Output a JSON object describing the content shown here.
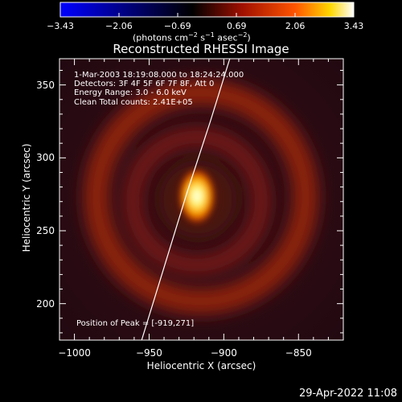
{
  "chart_data": {
    "type": "heatmap",
    "title": "Reconstructed RHESSI Image",
    "xlabel": "Heliocentric X (arcsec)",
    "ylabel": "Heliocentric Y (arcsec)",
    "xlim": [
      -1010,
      -820
    ],
    "ylim": [
      175,
      368
    ],
    "xticks": [
      {
        "value": -1000,
        "label": "−1000"
      },
      {
        "value": -950,
        "label": "−950"
      },
      {
        "value": -900,
        "label": "−900"
      },
      {
        "value": -850,
        "label": "−850"
      }
    ],
    "yticks": [
      {
        "value": 200,
        "label": "200"
      },
      {
        "value": 250,
        "label": "250"
      },
      {
        "value": 300,
        "label": "300"
      },
      {
        "value": 350,
        "label": "350"
      }
    ],
    "colorbar": {
      "range": [
        -3.43,
        3.43
      ],
      "ticks": [
        {
          "value": -3.43,
          "label": "−3.43"
        },
        {
          "value": -2.06,
          "label": "−2.06"
        },
        {
          "value": -0.69,
          "label": "−0.69"
        },
        {
          "value": 0.69,
          "label": "0.69"
        },
        {
          "value": 2.06,
          "label": "2.06"
        },
        {
          "value": 3.43,
          "label": "3.43"
        }
      ],
      "unit_prefix": "(photons cm",
      "unit_exp1": "−2",
      "unit_mid1": " s",
      "unit_exp2": "−1",
      "unit_mid2": " asec",
      "unit_exp3": "−2",
      "unit_suffix": ")",
      "colors": [
        "#0000ff",
        "#000000",
        "#8b0000",
        "#ff4500",
        "#ffd700",
        "#ffffff"
      ]
    },
    "annotations": [
      "1-Mar-2003 18:19:08.000 to 18:24:24.000",
      "Detectors: 3F 4F 5F 6F 7F 8F, Att 0",
      "Energy Range: 3.0 - 6.0 keV",
      "Clean     Total counts: 2.41E+05"
    ],
    "peak_label": "Position of Peak = [-919,271]",
    "peak": {
      "x": -919,
      "y": 271
    },
    "source_ring": {
      "center_x": -922,
      "center_y": 265,
      "radius_arcsec": 75
    },
    "limb_line": [
      {
        "x": -955,
        "y": 175
      },
      {
        "x": -940,
        "y": 225
      },
      {
        "x": -925,
        "y": 275
      },
      {
        "x": -909,
        "y": 325
      },
      {
        "x": -896,
        "y": 368
      }
    ]
  },
  "footer": {
    "timestamp": "29-Apr-2022 11:08"
  }
}
